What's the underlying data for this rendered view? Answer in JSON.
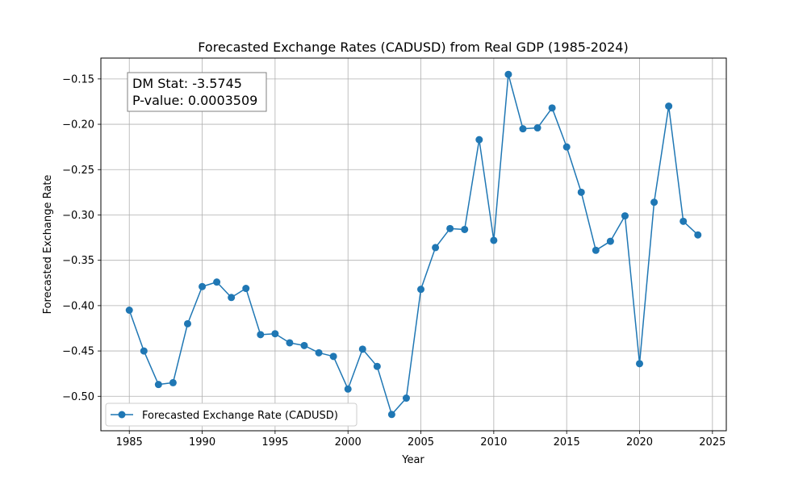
{
  "chart_data": {
    "type": "line",
    "title": "Forecasted Exchange Rates (CADUSD) from Real GDP (1985-2024)",
    "xlabel": "Year",
    "ylabel": "Forecasted Exchange Rate",
    "xlim": [
      1983.05,
      2025.95
    ],
    "ylim": [
      -0.538,
      -0.127
    ],
    "xticks": [
      1985,
      1990,
      1995,
      2000,
      2005,
      2010,
      2015,
      2020,
      2025
    ],
    "xtick_labels": [
      "1985",
      "1990",
      "1995",
      "2000",
      "2005",
      "2010",
      "2015",
      "2020",
      "2025"
    ],
    "yticks": [
      -0.15,
      -0.2,
      -0.25,
      -0.3,
      -0.35,
      -0.4,
      -0.45,
      -0.5
    ],
    "ytick_labels": [
      "−0.15",
      "−0.20",
      "−0.25",
      "−0.30",
      "−0.35",
      "−0.40",
      "−0.45",
      "−0.50"
    ],
    "grid": true,
    "legend_position": "lower-left",
    "annotation": {
      "lines": [
        "DM Stat: -3.5745",
        "P-value: 0.0003509"
      ],
      "position": "top-left"
    },
    "series": [
      {
        "name": "Forecasted Exchange Rate (CADUSD)",
        "color": "#1f77b4",
        "marker": "circle",
        "x": [
          1985,
          1986,
          1987,
          1988,
          1989,
          1990,
          1991,
          1992,
          1993,
          1994,
          1995,
          1996,
          1997,
          1998,
          1999,
          2000,
          2001,
          2002,
          2003,
          2004,
          2005,
          2006,
          2007,
          2008,
          2009,
          2010,
          2011,
          2012,
          2013,
          2014,
          2015,
          2016,
          2017,
          2018,
          2019,
          2020,
          2021,
          2022,
          2023,
          2024
        ],
        "y": [
          -0.405,
          -0.45,
          -0.487,
          -0.485,
          -0.42,
          -0.379,
          -0.374,
          -0.391,
          -0.381,
          -0.432,
          -0.431,
          -0.441,
          -0.444,
          -0.452,
          -0.456,
          -0.492,
          -0.448,
          -0.467,
          -0.52,
          -0.502,
          -0.382,
          -0.336,
          -0.315,
          -0.316,
          -0.217,
          -0.328,
          -0.145,
          -0.205,
          -0.204,
          -0.182,
          -0.225,
          -0.275,
          -0.339,
          -0.329,
          -0.301,
          -0.464,
          -0.286,
          -0.18,
          -0.307,
          -0.322
        ]
      }
    ]
  }
}
